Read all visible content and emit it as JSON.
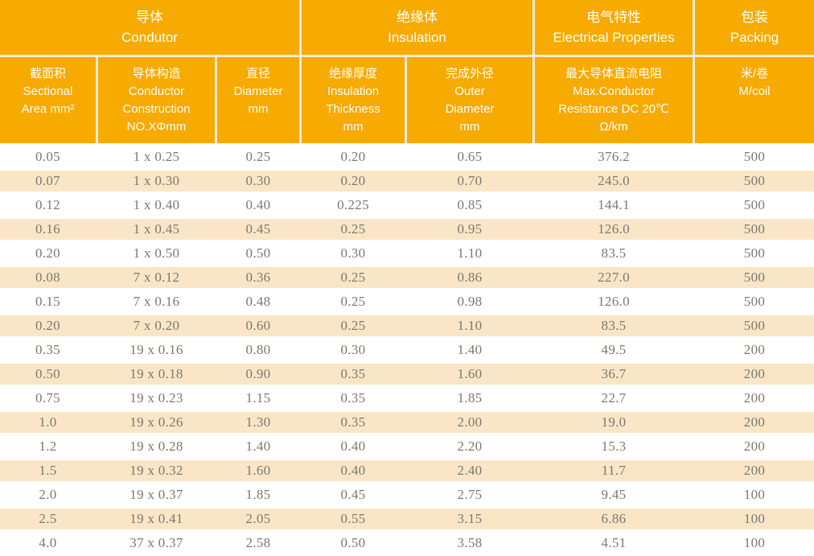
{
  "colors": {
    "header_orange": "#F7AA00",
    "separator_cream": "#F1ECDF",
    "row_stripe_peach": "#FAE6C6",
    "data_text_gray": "#7B7870",
    "header_text": "#FFFFFF"
  },
  "table": {
    "column_groups": [
      {
        "zh": "导体",
        "en": "Condutor"
      },
      {
        "zh": "绝缘体",
        "en": "Insulation"
      },
      {
        "zh": "电气特性",
        "en": "Electrical Properties"
      },
      {
        "zh": "包装",
        "en": "Packing"
      }
    ],
    "columns": [
      {
        "lines": [
          "截面积",
          "Sectional",
          "Area mm²"
        ]
      },
      {
        "lines": [
          "导体构造",
          "Conductor",
          "Construction",
          "NO.XΦmm"
        ]
      },
      {
        "lines": [
          "直径",
          "Diameter",
          "mm"
        ]
      },
      {
        "lines": [
          "绝缘厚度",
          "Insulation",
          "Thickness",
          "mm"
        ]
      },
      {
        "lines": [
          "完成外径",
          "Outer",
          "Diameter",
          "mm"
        ]
      },
      {
        "lines": [
          "最大导体直流电阻",
          "Max.Conductor",
          "Resistance DC 20℃",
          "Ω/km"
        ]
      },
      {
        "lines": [
          "米/卷",
          "M/coil"
        ]
      }
    ],
    "rows": [
      [
        "0.05",
        "1 x 0.25",
        "0.25",
        "0.20",
        "0.65",
        "376.2",
        "500"
      ],
      [
        "0.07",
        "1 x 0.30",
        "0.30",
        "0.20",
        "0.70",
        "245.0",
        "500"
      ],
      [
        "0.12",
        "1 x 0.40",
        "0.40",
        "0.225",
        "0.85",
        "144.1",
        "500"
      ],
      [
        "0.16",
        "1 x 0.45",
        "0.45",
        "0.25",
        "0.95",
        "126.0",
        "500"
      ],
      [
        "0.20",
        "1 x 0.50",
        "0.50",
        "0.30",
        "1.10",
        "83.5",
        "500"
      ],
      [
        "0.08",
        "7 x 0.12",
        "0.36",
        "0.25",
        "0.86",
        "227.0",
        "500"
      ],
      [
        "0.15",
        "7 x 0.16",
        "0.48",
        "0.25",
        "0.98",
        "126.0",
        "500"
      ],
      [
        "0.20",
        "7 x 0.20",
        "0.60",
        "0.25",
        "1.10",
        "83.5",
        "500"
      ],
      [
        "0.35",
        "19 x 0.16",
        "0.80",
        "0.30",
        "1.40",
        "49.5",
        "200"
      ],
      [
        "0.50",
        "19 x 0.18",
        "0.90",
        "0.35",
        "1.60",
        "36.7",
        "200"
      ],
      [
        "0.75",
        "19 x 0.23",
        "1.15",
        "0.35",
        "1.85",
        "22.7",
        "200"
      ],
      [
        "1.0",
        "19 x 0.26",
        "1.30",
        "0.35",
        "2.00",
        "19.0",
        "200"
      ],
      [
        "1.2",
        "19 x 0.28",
        "1.40",
        "0.40",
        "2.20",
        "15.3",
        "200"
      ],
      [
        "1.5",
        "19 x 0.32",
        "1.60",
        "0.40",
        "2.40",
        "11.7",
        "200"
      ],
      [
        "2.0",
        "19 x 0.37",
        "1.85",
        "0.45",
        "2.75",
        "9.45",
        "100"
      ],
      [
        "2.5",
        "19 x 0.41",
        "2.05",
        "0.55",
        "3.15",
        "6.86",
        "100"
      ],
      [
        "4.0",
        "37 x 0.37",
        "2.58",
        "0.50",
        "3.58",
        "4.51",
        "100"
      ]
    ]
  }
}
